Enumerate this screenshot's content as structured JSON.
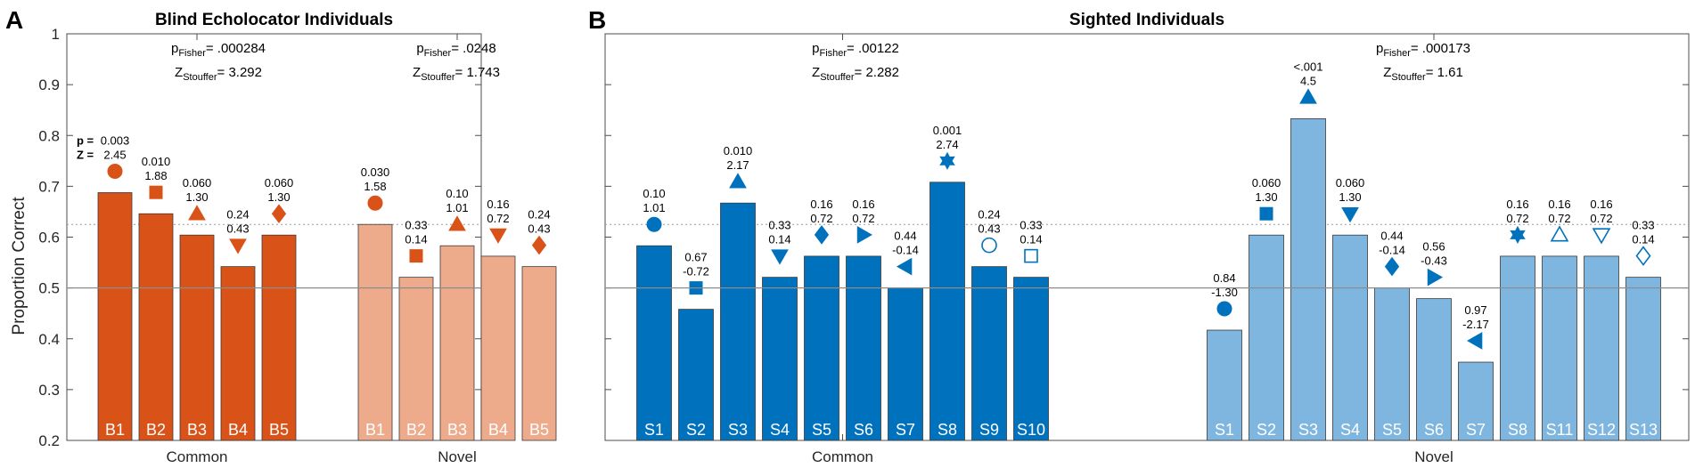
{
  "figure": {
    "ylabel": "Proportion Correct",
    "yticks": [
      "0.2",
      "0.3",
      "0.4",
      "0.5",
      "0.6",
      "0.7",
      "0.8",
      "0.9",
      "1"
    ],
    "colors": {
      "blind_common": "#d95319",
      "blind_novel": "#eeab8c",
      "sighted_common": "#0072bd",
      "sighted_novel": "#7eb6e0",
      "bar_edge": "#3a3a3a"
    }
  },
  "chart_data": [
    {
      "type": "bar",
      "panel": "A",
      "title": "Blind Echolocator Individuals",
      "ylabel": "Proportion Correct",
      "ylim": [
        0.2,
        1
      ],
      "chance_level": 0.5,
      "reference_line": 0.625,
      "groups": [
        {
          "name": "Common",
          "stats": {
            "p_label": "p",
            "p_sub": "Fisher",
            "p_value": "= .000284",
            "z_label": "Z",
            "z_sub": "Stouffer",
            "z_value": "= 3.292"
          },
          "bars": [
            {
              "label": "B1",
              "value": 0.6875,
              "p": "0.003",
              "z": "2.45",
              "marker": "circle"
            },
            {
              "label": "B2",
              "value": 0.646,
              "p": "0.010",
              "z": "1.88",
              "marker": "square"
            },
            {
              "label": "B3",
              "value": 0.604,
              "p": "0.060",
              "z": "1.30",
              "marker": "triangle-up"
            },
            {
              "label": "B4",
              "value": 0.542,
              "p": "0.24",
              "z": "0.43",
              "marker": "triangle-down"
            },
            {
              "label": "B5",
              "value": 0.604,
              "p": "0.060",
              "z": "1.30",
              "marker": "diamond"
            }
          ]
        },
        {
          "name": "Novel",
          "stats": {
            "p_label": "p",
            "p_sub": "Fisher",
            "p_value": "= .0248",
            "z_label": "Z",
            "z_sub": "Stouffer",
            "z_value": "= 1.743"
          },
          "bars": [
            {
              "label": "B1",
              "value": 0.625,
              "p": "0.030",
              "z": "1.58",
              "marker": "circle"
            },
            {
              "label": "B2",
              "value": 0.521,
              "p": "0.33",
              "z": "0.14",
              "marker": "square"
            },
            {
              "label": "B3",
              "value": 0.583,
              "p": "0.10",
              "z": "1.01",
              "marker": "triangle-up"
            },
            {
              "label": "B4",
              "value": 0.5625,
              "p": "0.16",
              "z": "0.72",
              "marker": "triangle-down"
            },
            {
              "label": "B5",
              "value": 0.542,
              "p": "0.24",
              "z": "0.43",
              "marker": "diamond"
            }
          ]
        }
      ],
      "annotation_keys": {
        "p": "p =",
        "z": "Z ="
      }
    },
    {
      "type": "bar",
      "panel": "B",
      "title": "Sighted Individuals",
      "ylim": [
        0.2,
        1
      ],
      "chance_level": 0.5,
      "reference_line": 0.625,
      "groups": [
        {
          "name": "Common",
          "stats": {
            "p_label": "p",
            "p_sub": "Fisher",
            "p_value": "= .00122",
            "z_label": "Z",
            "z_sub": "Stouffer",
            "z_value": "= 2.282"
          },
          "bars": [
            {
              "label": "S1",
              "value": 0.583,
              "p": "0.10",
              "z": "1.01",
              "marker": "circle"
            },
            {
              "label": "S2",
              "value": 0.458,
              "p": "0.67",
              "z": "-0.72",
              "marker": "square"
            },
            {
              "label": "S3",
              "value": 0.667,
              "p": "0.010",
              "z": "2.17",
              "marker": "triangle-up"
            },
            {
              "label": "S4",
              "value": 0.521,
              "p": "0.33",
              "z": "0.14",
              "marker": "triangle-down"
            },
            {
              "label": "S5",
              "value": 0.5625,
              "p": "0.16",
              "z": "0.72",
              "marker": "diamond"
            },
            {
              "label": "S6",
              "value": 0.5625,
              "p": "0.16",
              "z": "0.72",
              "marker": "triangle-right"
            },
            {
              "label": "S7",
              "value": 0.5,
              "p": "0.44",
              "z": "-0.14",
              "marker": "triangle-left"
            },
            {
              "label": "S8",
              "value": 0.708,
              "p": "0.001",
              "z": "2.74",
              "marker": "hexagram"
            },
            {
              "label": "S9",
              "value": 0.542,
              "p": "0.24",
              "z": "0.43",
              "marker": "circle-open"
            },
            {
              "label": "S10",
              "value": 0.521,
              "p": "0.33",
              "z": "0.14",
              "marker": "square-open"
            }
          ]
        },
        {
          "name": "Novel",
          "stats": {
            "p_label": "p",
            "p_sub": "Fisher",
            "p_value": "= .000173",
            "z_label": "Z",
            "z_sub": "Stouffer",
            "z_value": "= 1.61"
          },
          "bars": [
            {
              "label": "S1",
              "value": 0.417,
              "p": "0.84",
              "z": "-1.30",
              "marker": "circle"
            },
            {
              "label": "S2",
              "value": 0.604,
              "p": "0.060",
              "z": "1.30",
              "marker": "square"
            },
            {
              "label": "S3",
              "value": 0.833,
              "p": "<.001",
              "z": "4.5",
              "marker": "triangle-up"
            },
            {
              "label": "S4",
              "value": 0.604,
              "p": "0.060",
              "z": "1.30",
              "marker": "triangle-down"
            },
            {
              "label": "S5",
              "value": 0.5,
              "p": "0.44",
              "z": "-0.14",
              "marker": "diamond"
            },
            {
              "label": "S6",
              "value": 0.479,
              "p": "0.56",
              "z": "-0.43",
              "marker": "triangle-right"
            },
            {
              "label": "S7",
              "value": 0.354,
              "p": "0.97",
              "z": "-2.17",
              "marker": "triangle-left"
            },
            {
              "label": "S8",
              "value": 0.5625,
              "p": "0.16",
              "z": "0.72",
              "marker": "hexagram"
            },
            {
              "label": "S11",
              "value": 0.5625,
              "p": "0.16",
              "z": "0.72",
              "marker": "triangle-up-open"
            },
            {
              "label": "S12",
              "value": 0.5625,
              "p": "0.16",
              "z": "0.72",
              "marker": "triangle-down-open"
            },
            {
              "label": "S13",
              "value": 0.521,
              "p": "0.33",
              "z": "0.14",
              "marker": "diamond-open"
            }
          ]
        }
      ]
    }
  ]
}
